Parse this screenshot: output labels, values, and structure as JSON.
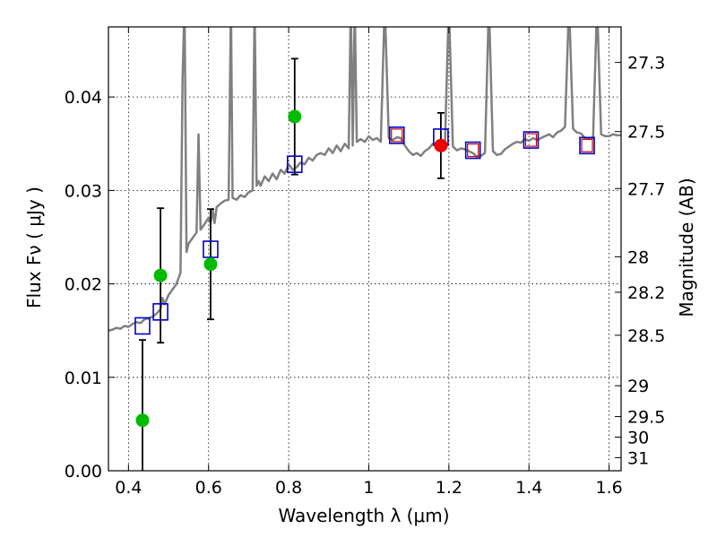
{
  "chart_data": {
    "type": "scatter",
    "title": "",
    "xlabel": "Wavelength  λ (μm)",
    "ylabel": "Flux  Fν  ( μJy )",
    "ylabel_right": "Magnitude (AB)",
    "xlim": [
      0.35,
      1.63
    ],
    "ylim": [
      0.0,
      0.0475
    ],
    "x_ticks": [
      0.4,
      0.6,
      0.8,
      1.0,
      1.2,
      1.4,
      1.6
    ],
    "x_tick_labels": [
      "0.4",
      "0.6",
      "0.8",
      "1",
      "1.2",
      "1.4",
      "1.6"
    ],
    "y_ticks": [
      0.0,
      0.01,
      0.02,
      0.03,
      0.04
    ],
    "y_tick_labels": [
      "0.00",
      "0.01",
      "0.02",
      "0.03",
      "0.04"
    ],
    "mag_ticks": [
      {
        "label": "27.3",
        "flux": 0.0437
      },
      {
        "label": "27.5",
        "flux": 0.0363
      },
      {
        "label": "27.7",
        "flux": 0.0302
      },
      {
        "label": "28",
        "flux": 0.0229
      },
      {
        "label": "28.2",
        "flux": 0.0191
      },
      {
        "label": "28.5",
        "flux": 0.0145
      },
      {
        "label": "29",
        "flux": 0.0091
      },
      {
        "label": "29.5",
        "flux": 0.0058
      },
      {
        "label": "30",
        "flux": 0.0036
      },
      {
        "label": "31",
        "flux": 0.0014
      }
    ],
    "grid": true,
    "colors": {
      "sed": "#808080",
      "model_box": "#0000cc",
      "model_box_inner": "#cc0000",
      "obs_green": "#00bb00",
      "obs_red": "#ee0000",
      "errorbar": "#000000"
    },
    "series": [
      {
        "name": "SED model spectrum",
        "style": "line",
        "x": [
          0.35,
          0.36,
          0.37,
          0.38,
          0.39,
          0.4,
          0.41,
          0.42,
          0.43,
          0.44,
          0.45,
          0.46,
          0.47,
          0.48,
          0.485,
          0.49,
          0.5,
          0.51,
          0.52,
          0.53,
          0.535,
          0.54,
          0.545,
          0.55,
          0.56,
          0.57,
          0.575,
          0.58,
          0.59,
          0.6,
          0.605,
          0.61,
          0.615,
          0.62,
          0.63,
          0.64,
          0.65,
          0.656,
          0.66,
          0.67,
          0.68,
          0.69,
          0.7,
          0.71,
          0.715,
          0.72,
          0.725,
          0.73,
          0.74,
          0.75,
          0.76,
          0.77,
          0.78,
          0.79,
          0.8,
          0.81,
          0.82,
          0.83,
          0.84,
          0.85,
          0.86,
          0.87,
          0.88,
          0.89,
          0.9,
          0.91,
          0.92,
          0.93,
          0.94,
          0.95,
          0.955,
          0.96,
          0.965,
          0.97,
          0.98,
          0.99,
          1.0,
          1.01,
          1.02,
          1.03,
          1.04,
          1.05,
          1.06,
          1.07,
          1.08,
          1.09,
          1.1,
          1.11,
          1.12,
          1.13,
          1.14,
          1.15,
          1.16,
          1.17,
          1.18,
          1.19,
          1.2,
          1.21,
          1.22,
          1.23,
          1.24,
          1.25,
          1.26,
          1.27,
          1.28,
          1.29,
          1.3,
          1.31,
          1.32,
          1.33,
          1.34,
          1.35,
          1.36,
          1.37,
          1.38,
          1.39,
          1.4,
          1.41,
          1.42,
          1.43,
          1.44,
          1.45,
          1.46,
          1.47,
          1.48,
          1.49,
          1.5,
          1.51,
          1.52,
          1.53,
          1.54,
          1.55,
          1.56,
          1.57,
          1.58,
          1.59,
          1.6,
          1.61,
          1.62,
          1.63
        ],
        "y": [
          0.015,
          0.0151,
          0.0153,
          0.0152,
          0.0155,
          0.0154,
          0.0157,
          0.0159,
          0.0158,
          0.0162,
          0.0163,
          0.0165,
          0.0168,
          0.0173,
          0.0185,
          0.0178,
          0.0188,
          0.0194,
          0.02,
          0.0212,
          0.042,
          0.05,
          0.0234,
          0.0243,
          0.0249,
          0.0255,
          0.036,
          0.0258,
          0.0264,
          0.0271,
          0.0265,
          0.028,
          0.0265,
          0.0282,
          0.0286,
          0.0289,
          0.029,
          0.05,
          0.0292,
          0.029,
          0.0295,
          0.0293,
          0.0298,
          0.03,
          0.05,
          0.0305,
          0.031,
          0.0305,
          0.0315,
          0.031,
          0.0318,
          0.0312,
          0.0322,
          0.0318,
          0.0328,
          0.0322,
          0.0325,
          0.033,
          0.0328,
          0.0335,
          0.0332,
          0.0338,
          0.034,
          0.0338,
          0.0345,
          0.034,
          0.0348,
          0.0342,
          0.035,
          0.0345,
          0.05,
          0.0348,
          0.05,
          0.0352,
          0.0355,
          0.0352,
          0.0358,
          0.0354,
          0.0356,
          0.0352,
          0.05,
          0.0356,
          0.0354,
          0.0357,
          0.0356,
          0.0348,
          0.0342,
          0.0338,
          0.034,
          0.0337,
          0.0342,
          0.0345,
          0.035,
          0.0346,
          0.0348,
          0.0346,
          0.05,
          0.0347,
          0.0343,
          0.0345,
          0.0344,
          0.0342,
          0.034,
          0.0336,
          0.0337,
          0.034,
          0.05,
          0.0342,
          0.0338,
          0.0339,
          0.0344,
          0.0347,
          0.035,
          0.0352,
          0.0351,
          0.0355,
          0.0353,
          0.0356,
          0.0354,
          0.0356,
          0.0358,
          0.036,
          0.0357,
          0.0362,
          0.0364,
          0.0368,
          0.05,
          0.0366,
          0.0362,
          0.0361,
          0.0356,
          0.0355,
          0.0356,
          0.05,
          0.036,
          0.0358,
          0.0358,
          0.036,
          0.0359,
          0.0359
        ]
      },
      {
        "name": "model photometry",
        "style": "open-square",
        "x": [
          0.435,
          0.48,
          0.605,
          0.815,
          1.07,
          1.18,
          1.26,
          1.405,
          1.545
        ],
        "y": [
          0.0155,
          0.017,
          0.0237,
          0.0328,
          0.0359,
          0.0357,
          0.0343,
          0.0354,
          0.0348
        ]
      },
      {
        "name": "inner model photometry",
        "style": "inner-open-square",
        "x": [
          1.07,
          1.26,
          1.405,
          1.545
        ],
        "y": [
          0.0359,
          0.0343,
          0.0354,
          0.0348
        ]
      },
      {
        "name": "observed photometry",
        "style": "filled-circle",
        "color": "green",
        "x": [
          0.435,
          0.48,
          0.605,
          0.815
        ],
        "y": [
          0.0054,
          0.0209,
          0.0221,
          0.0379
        ],
        "yerr": [
          0.0086,
          0.0072,
          0.0059,
          0.0062
        ]
      },
      {
        "name": "observed photometry (detection)",
        "style": "filled-circle",
        "color": "red",
        "x": [
          1.18
        ],
        "y": [
          0.0348
        ],
        "yerr": [
          0.0035
        ]
      }
    ]
  }
}
